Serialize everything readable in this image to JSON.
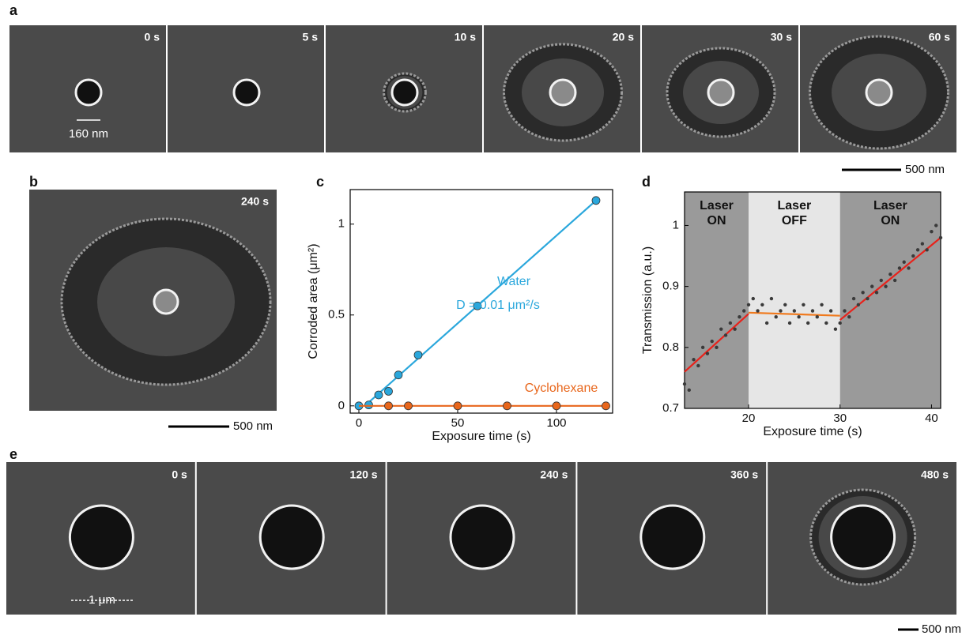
{
  "figure": {
    "panel_letters": [
      "a",
      "b",
      "c",
      "d",
      "e"
    ],
    "a": {
      "times": [
        "0 s",
        "5 s",
        "10 s",
        "20 s",
        "30 s",
        "60 s"
      ],
      "diameter": "160 nm",
      "scale_bar": "500 nm"
    },
    "b": {
      "time": "240 s",
      "scale_bar": "500 nm"
    },
    "e": {
      "times": [
        "0 s",
        "120 s",
        "240 s",
        "360 s",
        "480 s"
      ],
      "diameter": "1 μm",
      "scale_bar": "500 nm"
    }
  },
  "chart_data": [
    {
      "type": "scatter",
      "xlabel": "Exposure time (s)",
      "ylabel": "Corroded area (μm²)",
      "xlim": [
        -4.4,
        128.4
      ],
      "ylim": [
        -0.04,
        1.19
      ],
      "xticks": [
        0,
        50,
        100
      ],
      "yticks": [
        0,
        0.5,
        1
      ],
      "annotation": "D = 0.01 μm²/s",
      "series": [
        {
          "name": "Water",
          "color": "#2aa7dc",
          "x": [
            0,
            5,
            10,
            15,
            20,
            30,
            60,
            120
          ],
          "values": [
            0,
            0.005,
            0.06,
            0.08,
            0.17,
            0.28,
            0.55,
            1.13
          ],
          "fit": {
            "x": [
              3,
              120
            ],
            "values": [
              0,
              1.13
            ]
          }
        },
        {
          "name": "Cyclohexane",
          "color": "#e8661b",
          "x": [
            15,
            25,
            50,
            75,
            100,
            125
          ],
          "values": [
            0,
            0,
            0,
            0,
            0,
            0
          ],
          "fit": {
            "x": [
              0,
              125
            ],
            "values": [
              0,
              0
            ]
          }
        }
      ]
    },
    {
      "type": "scatter",
      "xlabel": "Exposure time (s)",
      "ylabel": "Transmission (a.u.)",
      "xlim": [
        13,
        41
      ],
      "ylim": [
        0.7,
        1.055
      ],
      "xticks": [
        20,
        30,
        40
      ],
      "yticks": [
        0.7,
        0.8,
        0.9,
        1
      ],
      "regions": [
        {
          "x": [
            13,
            20
          ],
          "label": [
            "Laser",
            "ON"
          ],
          "color": "#9a9a9a"
        },
        {
          "x": [
            20,
            30
          ],
          "label": [
            "Laser",
            "OFF"
          ],
          "color": "#e6e6e6"
        },
        {
          "x": [
            30,
            41
          ],
          "label": [
            "Laser",
            "ON"
          ],
          "color": "#9a9a9a"
        }
      ],
      "series": [
        {
          "color": "#3a3a3a",
          "x": [
            13,
            13.5,
            14,
            14.5,
            15,
            15.5,
            16,
            16.5,
            17,
            17.5,
            18,
            18.5,
            19,
            19.5,
            20,
            20.5,
            21,
            21.5,
            22,
            22.5,
            23,
            23.5,
            24,
            24.5,
            25,
            25.5,
            26,
            26.5,
            27,
            27.5,
            28,
            28.5,
            29,
            29.5,
            30,
            30.5,
            31,
            31.5,
            32,
            32.5,
            33,
            33.5,
            34,
            34.5,
            35,
            35.5,
            36,
            36.5,
            37,
            37.5,
            38,
            38.5,
            39,
            39.5,
            40,
            40.5,
            41
          ],
          "values": [
            0.74,
            0.73,
            0.78,
            0.77,
            0.8,
            0.79,
            0.81,
            0.8,
            0.83,
            0.82,
            0.84,
            0.83,
            0.85,
            0.86,
            0.87,
            0.88,
            0.86,
            0.87,
            0.84,
            0.88,
            0.85,
            0.86,
            0.87,
            0.84,
            0.86,
            0.85,
            0.87,
            0.84,
            0.86,
            0.85,
            0.87,
            0.84,
            0.86,
            0.83,
            0.84,
            0.86,
            0.85,
            0.88,
            0.87,
            0.89,
            0.88,
            0.9,
            0.89,
            0.91,
            0.9,
            0.92,
            0.91,
            0.93,
            0.94,
            0.93,
            0.95,
            0.96,
            0.97,
            0.96,
            0.99,
            1.0,
            0.98
          ]
        }
      ],
      "fits": [
        {
          "x": [
            13,
            20
          ],
          "values": [
            0.76,
            0.855
          ],
          "color": "#e8221b"
        },
        {
          "x": [
            20,
            30
          ],
          "values": [
            0.857,
            0.852
          ],
          "color": "#f07a1e"
        },
        {
          "x": [
            30,
            41
          ],
          "values": [
            0.845,
            0.98
          ],
          "color": "#e8221b"
        }
      ]
    }
  ]
}
